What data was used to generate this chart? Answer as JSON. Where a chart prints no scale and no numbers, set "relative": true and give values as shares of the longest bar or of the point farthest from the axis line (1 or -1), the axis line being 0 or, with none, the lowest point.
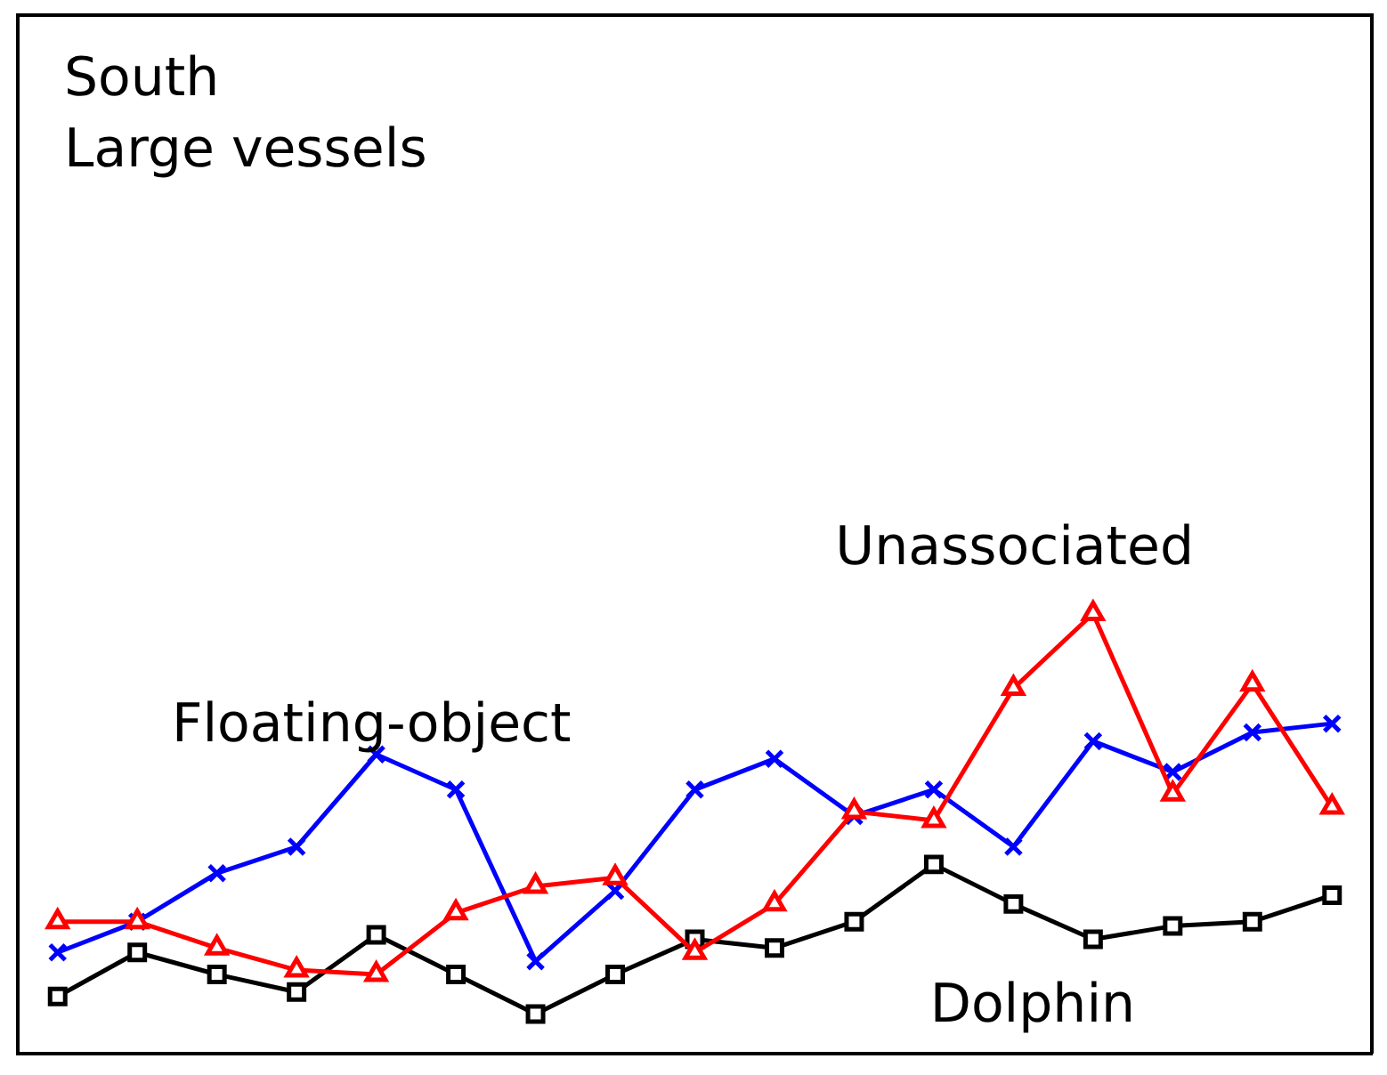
{
  "chart_data": {
    "type": "line",
    "relative": true,
    "annotations": [
      "South",
      "Large vessels"
    ],
    "categories": [
      null,
      null,
      null,
      null,
      null,
      null,
      null,
      null,
      null,
      null,
      null,
      null,
      null,
      null,
      null,
      null,
      null
    ],
    "series": [
      {
        "name": "Floating-object",
        "color": "#0000ff",
        "marker": "cross",
        "values": [
          0.23,
          0.3,
          0.41,
          0.47,
          0.68,
          0.6,
          0.21,
          0.37,
          0.6,
          0.67,
          0.54,
          0.6,
          0.47,
          0.71,
          0.64,
          0.73,
          0.75
        ]
      },
      {
        "name": "Unassociated",
        "color": "#ff0000",
        "marker": "triangle",
        "values": [
          0.3,
          0.3,
          0.24,
          0.19,
          0.18,
          0.32,
          0.38,
          0.4,
          0.23,
          0.34,
          0.55,
          0.53,
          0.83,
          1,
          0.59,
          0.84,
          0.56
        ]
      },
      {
        "name": "Dolphin",
        "color": "#000000",
        "marker": "square",
        "values": [
          0.13,
          0.23,
          0.18,
          0.14,
          0.27,
          0.18,
          0.09,
          0.18,
          0.26,
          0.24,
          0.3,
          0.43,
          0.34,
          0.26,
          0.29,
          0.3,
          0.36
        ]
      }
    ],
    "line_style": "solid"
  }
}
